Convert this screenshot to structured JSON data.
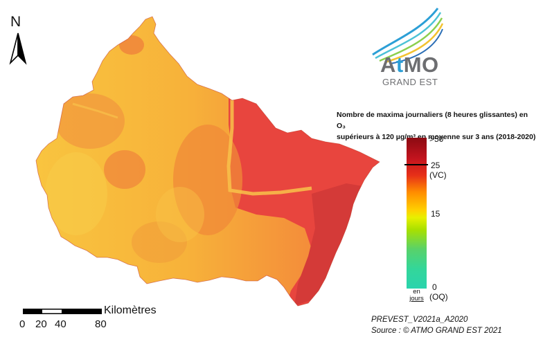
{
  "north": {
    "label": "N"
  },
  "logo": {
    "name_a": "A",
    "name_t": "t",
    "name_rest": "MO",
    "subtitle": "GRAND EST"
  },
  "legend": {
    "title_line1": "Nombre de maxima journaliers (8 heures glissantes) en O₃",
    "title_line2": "supérieurs à 120 µg/m³  en moyenne sur 3 ans  (2018-2020)",
    "ticks": {
      "max": ">50",
      "vc_value": "25",
      "vc_label": "(VC)",
      "mid": "15",
      "zero": "0",
      "oq_label": "(OQ)"
    },
    "unit_line1": "en",
    "unit_line2": "jours",
    "colors": [
      "#8b0a12",
      "#c4141e",
      "#e73018",
      "#ff8c00",
      "#ffd000",
      "#e8f000",
      "#a8e000",
      "#58d26a",
      "#2ad4ad"
    ]
  },
  "scale": {
    "title": "Kilomètres",
    "labels": [
      "0",
      "20",
      "40",
      "80"
    ]
  },
  "credits": {
    "line1": "PREVEST_V2021a_A2020",
    "line2": "Source : © ATMO GRAND EST 2021"
  },
  "map": {
    "region": "Grand Est",
    "west_color": "#f8ad3a",
    "east_color": "#e8453e"
  }
}
